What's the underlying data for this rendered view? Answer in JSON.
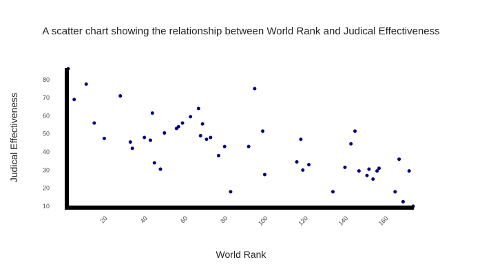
{
  "chart_data": {
    "type": "scatter",
    "title": "A scatter chart showing the relationship between World Rank and Judical Effectiveness",
    "xlabel": "World Rank",
    "ylabel": "Judical Effectiveness",
    "xlim": [
      1,
      173
    ],
    "ylim": [
      10,
      86
    ],
    "x_ticks": [
      20,
      40,
      60,
      80,
      100,
      120,
      140,
      160
    ],
    "y_ticks": [
      10,
      20,
      30,
      40,
      50,
      60,
      70,
      80
    ],
    "grid": false,
    "legend": "none",
    "point_color": "#000080",
    "axis_color": "#000000",
    "points": [
      [
        1,
        86
      ],
      [
        4,
        69
      ],
      [
        10,
        77.5
      ],
      [
        14,
        56
      ],
      [
        19,
        47.5
      ],
      [
        27,
        71
      ],
      [
        32,
        45.5
      ],
      [
        33,
        42
      ],
      [
        39,
        48
      ],
      [
        42,
        46.5
      ],
      [
        43,
        61.5
      ],
      [
        44,
        34
      ],
      [
        47,
        30.5
      ],
      [
        49,
        50.5
      ],
      [
        55,
        53
      ],
      [
        56,
        54
      ],
      [
        58,
        56
      ],
      [
        62,
        59.5
      ],
      [
        66,
        64
      ],
      [
        67,
        49
      ],
      [
        68,
        55.5
      ],
      [
        70,
        47
      ],
      [
        72,
        48
      ],
      [
        76,
        38
      ],
      [
        79,
        43
      ],
      [
        82,
        18
      ],
      [
        91,
        43
      ],
      [
        94,
        75
      ],
      [
        98,
        51.5
      ],
      [
        99,
        27.5
      ],
      [
        115,
        34.5
      ],
      [
        117,
        47
      ],
      [
        118,
        30
      ],
      [
        121,
        33
      ],
      [
        133,
        18
      ],
      [
        139,
        31.5
      ],
      [
        142,
        44.5
      ],
      [
        144,
        51.5
      ],
      [
        146,
        29.5
      ],
      [
        150,
        27
      ],
      [
        151,
        30.5
      ],
      [
        153,
        25
      ],
      [
        155,
        29.5
      ],
      [
        156,
        31
      ],
      [
        164,
        18
      ],
      [
        166,
        36
      ],
      [
        168,
        12.5
      ],
      [
        171,
        29.5
      ],
      [
        173,
        10
      ]
    ]
  }
}
